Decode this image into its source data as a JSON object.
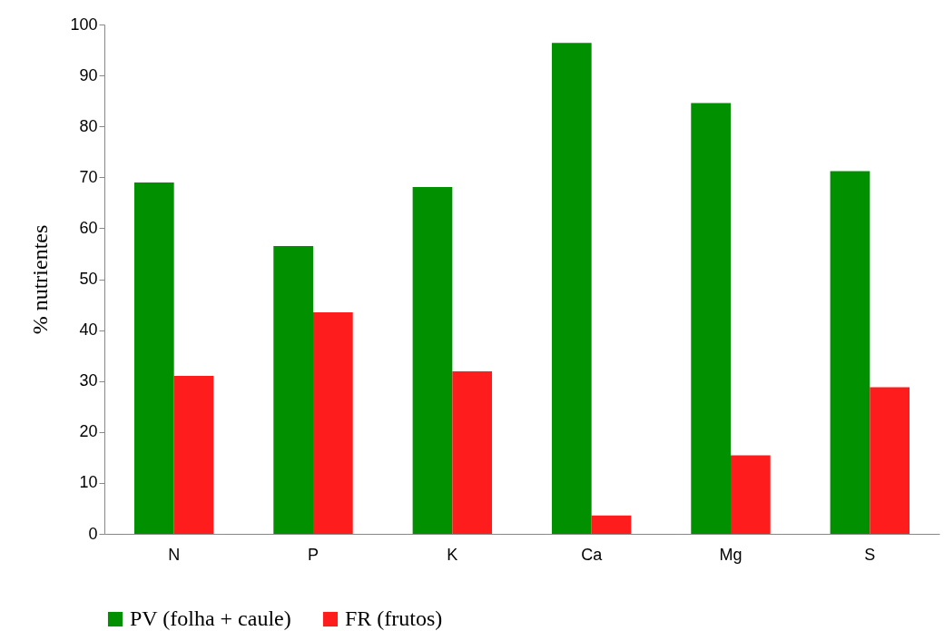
{
  "chart_data": {
    "type": "bar",
    "ylabel": "%  nutrientes",
    "categories": [
      "N",
      "P",
      "K",
      "Ca",
      "Mg",
      "S"
    ],
    "series": [
      {
        "name": "PV (folha + caule)",
        "color": "#009000",
        "values": [
          69,
          56.5,
          68.1,
          96.4,
          84.6,
          71.2
        ]
      },
      {
        "name": "FR (frutos)",
        "color": "#ff1c1c",
        "values": [
          31,
          43.5,
          31.9,
          3.6,
          15.4,
          28.8
        ]
      }
    ],
    "ylim": [
      0,
      100
    ],
    "yticks": [
      0,
      10,
      20,
      30,
      40,
      50,
      60,
      70,
      80,
      90,
      100
    ],
    "grid": false,
    "legend": "bottom"
  }
}
